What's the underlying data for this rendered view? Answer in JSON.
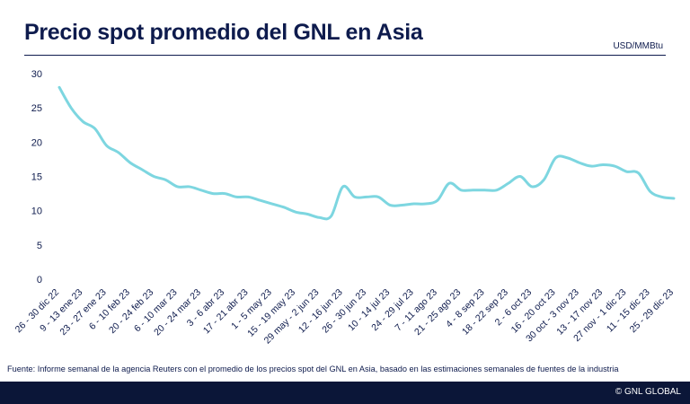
{
  "header": {
    "title": "Precio spot promedio del GNL en Asia",
    "unit": "USD/MMBtu"
  },
  "footer": {
    "source": "Fuente: Informe semanal de la agencia Reuters con el promedio de los precios spot del GNL en Asia, basado en las estimaciones semanales de fuentes de la industria",
    "copyright": "© GNL GLOBAL"
  },
  "colors": {
    "line": "#7dd6e0",
    "text": "#0e1b4d",
    "footer_bg": "#0b1638"
  },
  "chart_data": {
    "type": "line",
    "title": "Precio spot promedio del GNL en Asia",
    "ylabel": "USD/MMBtu",
    "xlabel": "",
    "ylim": [
      0,
      30
    ],
    "yticks": [
      0,
      5,
      10,
      15,
      20,
      25,
      30
    ],
    "grid": false,
    "tick_labels": [
      "26 - 30 dic 22",
      "9 - 13 ene 23",
      "23 - 27 ene 23",
      "6 - 10 feb 23",
      "20 - 24 feb 23",
      "6 - 10 mar 23",
      "20 - 24 mar 23",
      "3 - 6 abr 23",
      "17 - 21 abr 23",
      "1 - 5 may 23",
      "15 - 19 may 23",
      "29 may - 2 jun 23",
      "12 - 16 jun 23",
      "26 - 30 jun 23",
      "10 - 14 jul 23",
      "24 - 29 jul 23",
      "7 - 11 ago 23",
      "21 - 25 ago 23",
      "4 - 8 sep 23",
      "18 - 22 sep 23",
      "2 - 6 oct 23",
      "16 - 20 oct 23",
      "30 oct - 3 nov 23",
      "13 - 17 nov 23",
      "27 nov - 1 dic 23",
      "11 - 15 dic 23",
      "25 - 29 dic 23"
    ],
    "series": [
      {
        "values": [
          28.0,
          25.0,
          23.0,
          22.0,
          19.5,
          18.5,
          17.0,
          16.0,
          15.0,
          14.5,
          13.5,
          13.5,
          13.0,
          12.5,
          12.5,
          12.0,
          12.0,
          11.5,
          11.0,
          10.5,
          9.8,
          9.5,
          9.0,
          9.2,
          13.5,
          12.0,
          12.0,
          12.0,
          10.8,
          10.8,
          11.0,
          11.0,
          11.5,
          14.0,
          13.0,
          13.0,
          13.0,
          13.0,
          14.0,
          15.0,
          13.5,
          14.5,
          17.7,
          17.7,
          17.0,
          16.5,
          16.7,
          16.5,
          15.7,
          15.5,
          12.8,
          12.0,
          11.8
        ]
      }
    ]
  }
}
